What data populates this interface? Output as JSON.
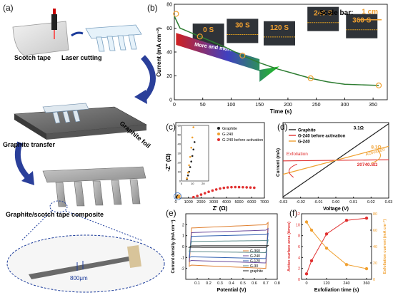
{
  "figure": {
    "panel_labels": [
      "(a)",
      "(b)",
      "(c)",
      "(d)",
      "(e)",
      "(f)"
    ]
  },
  "schematic": {
    "scotch_tape": "Scotch tape",
    "laser_cutting": "Laser cutting",
    "graphite_foil": "Graphite foil",
    "graphite_transfer": "Graphite transfer",
    "composite": "Graphite/scotch tape composite",
    "scale": "800μm"
  },
  "chart_data": [
    {
      "panel": "b",
      "type": "line",
      "xlabel": "Time (s)",
      "ylabel": "Current (mA cm⁻²)",
      "xlim": [
        0,
        375
      ],
      "ylim": [
        0,
        80
      ],
      "xticks": [
        0,
        50,
        100,
        150,
        200,
        250,
        300,
        350
      ],
      "yticks": [
        0,
        20,
        40,
        60,
        80
      ],
      "x": [
        0,
        10,
        30,
        45,
        60,
        90,
        120,
        150,
        180,
        210,
        240,
        270,
        300,
        330,
        360
      ],
      "y": [
        70,
        60,
        56,
        53,
        50,
        44,
        37,
        31,
        26,
        22,
        18,
        15,
        13,
        12.5,
        12
      ],
      "markers": [
        [
          3,
          72
        ],
        [
          45,
          53
        ],
        [
          120,
          37
        ],
        [
          240,
          18
        ],
        [
          360,
          12
        ]
      ],
      "annotation": "More and more dense graphene",
      "scale_bar": "Scale bar:",
      "scale_bar_value": "1 cm",
      "inset_labels": [
        "0 S",
        "30 S",
        "120 S",
        "240 S",
        "360 S"
      ]
    },
    {
      "panel": "c",
      "type": "scatter",
      "xlabel": "Z' (Ω)",
      "ylabel": "-Z'' (Ω)",
      "xlim": [
        0,
        7000
      ],
      "ylim": [
        0,
        6500
      ],
      "xticks": [
        0,
        1000,
        2000,
        3000,
        4000,
        5000,
        6000,
        7000
      ],
      "yticks": [
        0,
        1000,
        2000,
        3000,
        4000,
        5000,
        6000
      ],
      "series": [
        {
          "name": "Graphite",
          "color": "#222222",
          "x": [
            100,
            120,
            140,
            160,
            180
          ],
          "y": [
            60,
            90,
            120,
            160,
            200
          ]
        },
        {
          "name": "G-240",
          "color": "#f0a030",
          "x": [
            200,
            220,
            240,
            260,
            280
          ],
          "y": [
            80,
            100,
            130,
            160,
            190
          ]
        },
        {
          "name": "G-240 before activation",
          "color": "#e03030",
          "x": [
            1400,
            1700,
            2000,
            2300,
            2600,
            2900,
            3200,
            3500,
            3800,
            4100,
            4400,
            4700,
            5000,
            5300,
            5600,
            5900,
            6200
          ],
          "y": [
            80,
            180,
            300,
            420,
            540,
            650,
            740,
            820,
            880,
            920,
            940,
            950,
            945,
            935,
            925,
            910,
            890
          ]
        }
      ],
      "inset": {
        "xlim": [
          0,
          25
        ],
        "ylim": [
          0,
          60
        ],
        "xticks": [
          0,
          10,
          20
        ],
        "yticks": [
          0,
          10,
          20,
          30,
          40,
          50,
          60
        ],
        "series": [
          {
            "name": "Graphite",
            "x": [
              5,
              6,
              7,
              8,
              9,
              10,
              11,
              12
            ],
            "y": [
              2,
              6,
              10,
              15,
              21,
              27,
              34,
              42
            ]
          },
          {
            "name": "G-240",
            "x": [
              5,
              6,
              7,
              8,
              9,
              10,
              11
            ],
            "y": [
              3,
              9,
              17,
              26,
              36,
              47,
              58
            ]
          }
        ]
      }
    },
    {
      "panel": "d",
      "type": "line",
      "xlabel": "Voltage (V)",
      "ylabel": "Current (mA)",
      "xlim": [
        -0.03,
        0.03
      ],
      "ylim": [
        -10,
        10
      ],
      "xticks": [
        -0.03,
        -0.02,
        -0.01,
        0.0,
        0.01,
        0.02,
        0.03
      ],
      "xtick_labels": [
        "-0.03",
        "-0.02",
        "-0.01",
        "0.00",
        "0.01",
        "0.02",
        "0.03"
      ],
      "series": [
        {
          "name": "Graphite",
          "color": "#222222",
          "x": [
            -0.03,
            0.03
          ],
          "y": [
            -9.7,
            9.7
          ]
        },
        {
          "name": "G-240 before activation",
          "color": "#e03030",
          "x": [
            -0.03,
            0.03
          ],
          "y": [
            -0.15,
            0.15
          ]
        },
        {
          "name": "G-240",
          "color": "#f0a030",
          "x": [
            -0.03,
            0.03
          ],
          "y": [
            -3.7,
            3.7
          ]
        }
      ],
      "annotations": [
        "3.1Ω",
        "8.1Ω",
        "20740.8Ω",
        "Exfoliation",
        "Activation"
      ]
    },
    {
      "panel": "e",
      "type": "line",
      "xlabel": "Potential (V)",
      "ylabel": "Current density (mA cm⁻²)",
      "xlim": [
        0,
        0.8
      ],
      "ylim": [
        -3,
        3
      ],
      "xticks": [
        0.1,
        0.2,
        0.3,
        0.4,
        0.5,
        0.6,
        0.7,
        0.8
      ],
      "xtick_labels": [
        "0.1",
        "0.2",
        "0.3",
        "0.4",
        "0.5",
        "0.6",
        "0.7",
        "0.8"
      ],
      "yticks": [
        -2,
        -1,
        0,
        1,
        2
      ],
      "series": [
        {
          "name": "G-360",
          "color": "#e08030",
          "amp": 2.0
        },
        {
          "name": "G-240",
          "color": "#6a4a9c",
          "amp": 1.5
        },
        {
          "name": "G-120",
          "color": "#3060b0",
          "amp": 1.1
        },
        {
          "name": "G-30",
          "color": "#5a8a8a",
          "amp": 0.55
        },
        {
          "name": "graphite",
          "color": "#222222",
          "amp": 0.08
        }
      ]
    },
    {
      "panel": "f",
      "type": "line",
      "xlabel": "Exfoliation time (s)",
      "ylabel": "Active surface area (times)",
      "ylabel_right": "Exfoliation current (mA cm⁻²)",
      "xlim": [
        -30,
        390
      ],
      "ylim": [
        0,
        12
      ],
      "ylim_right": [
        0,
        80
      ],
      "xticks": [
        0,
        120,
        240,
        360
      ],
      "xtick_labels": [
        "0",
        "120",
        "240",
        "360"
      ],
      "yticks": [
        0,
        2,
        4,
        6,
        8,
        10,
        12
      ],
      "yticks_right": [
        0,
        20,
        40,
        60,
        80
      ],
      "series": [
        {
          "name": "Active surface area",
          "color": "#e03030",
          "axis": "left",
          "x": [
            0,
            30,
            120,
            240,
            360
          ],
          "y": [
            1,
            3.4,
            8.3,
            10.8,
            11.2
          ]
        },
        {
          "name": "Exfoliation current",
          "color": "#f0a030",
          "axis": "right",
          "x": [
            0,
            30,
            120,
            240,
            360
          ],
          "y": [
            70,
            60,
            38,
            18,
            13
          ]
        }
      ]
    }
  ]
}
